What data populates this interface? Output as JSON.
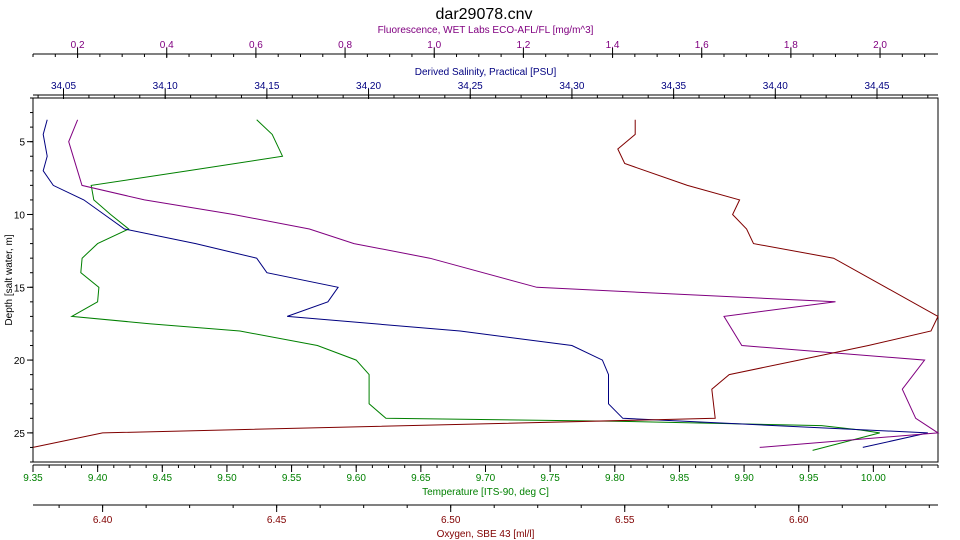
{
  "chart_data": {
    "type": "line",
    "title": "dar29078.cnv",
    "y_axis": {
      "label": "Depth [salt water, m]",
      "range": [
        2,
        27
      ],
      "inverted": true,
      "ticks": [
        5,
        10,
        15,
        20,
        25
      ]
    },
    "axes": [
      {
        "id": "fluorescence",
        "label": "Fluorescence, WET Labs ECO-AFL/FL [mg/m^3]",
        "position": "top",
        "range": [
          0.1,
          2.13
        ],
        "ticks": [
          0.2,
          0.4,
          0.6,
          0.8,
          1.0,
          1.2,
          1.4,
          1.6,
          1.8,
          2.0
        ],
        "tick_labels": [
          "0.2",
          "0.4",
          "0.6",
          "0.8",
          "1.0",
          "1.2",
          "1.4",
          "1.6",
          "1.8",
          "2.0"
        ],
        "minor_step": 0.05,
        "color": "#800080"
      },
      {
        "id": "salinity",
        "label": "Derived Salinity, Practical [PSU]",
        "position": "top",
        "range": [
          34.035,
          34.48
        ],
        "ticks": [
          34.05,
          34.1,
          34.15,
          34.2,
          34.25,
          34.3,
          34.35,
          34.4,
          34.45
        ],
        "tick_labels": [
          "34.05",
          "34.10",
          "34.15",
          "34.20",
          "34.25",
          "34.30",
          "34.35",
          "34.40",
          "34.45"
        ],
        "minor_step": 0.0125,
        "color": "#000080"
      },
      {
        "id": "temperature",
        "label": "Temperature [ITS-90, deg C]",
        "position": "bottom",
        "range": [
          9.35,
          10.05
        ],
        "ticks": [
          9.35,
          9.4,
          9.45,
          9.5,
          9.55,
          9.6,
          9.65,
          9.7,
          9.75,
          9.8,
          9.85,
          9.9,
          9.95,
          10.0
        ],
        "tick_labels": [
          "9.35",
          "9.40",
          "9.45",
          "9.50",
          "9.55",
          "9.60",
          "9.65",
          "9.70",
          "9.75",
          "9.80",
          "9.85",
          "9.90",
          "9.95",
          "10.00"
        ],
        "minor_step": 0.0125,
        "color": "#008000"
      },
      {
        "id": "oxygen",
        "label": "Oxygen, SBE 43 [ml/l]",
        "position": "bottom",
        "range": [
          6.38,
          6.64
        ],
        "ticks": [
          6.4,
          6.45,
          6.5,
          6.55,
          6.6
        ],
        "tick_labels": [
          "6.40",
          "6.45",
          "6.50",
          "6.55",
          "6.60"
        ],
        "minor_step": 0.0125,
        "color": "#800000"
      }
    ],
    "series": [
      {
        "axis": "temperature",
        "color": "#008000",
        "points": [
          [
            9.523,
            3.5
          ],
          [
            9.535,
            4.5
          ],
          [
            9.543,
            6.0
          ],
          [
            9.47,
            7.0
          ],
          [
            9.395,
            8.0
          ],
          [
            9.397,
            9.0
          ],
          [
            9.41,
            10.0
          ],
          [
            9.424,
            11.0
          ],
          [
            9.4,
            12.0
          ],
          [
            9.388,
            13.0
          ],
          [
            9.387,
            14.0
          ],
          [
            9.401,
            15.0
          ],
          [
            9.4,
            16.0
          ],
          [
            9.38,
            17.0
          ],
          [
            9.44,
            17.5
          ],
          [
            9.51,
            18.0
          ],
          [
            9.57,
            19.0
          ],
          [
            9.6,
            20.0
          ],
          [
            9.61,
            21.0
          ],
          [
            9.61,
            23.0
          ],
          [
            9.623,
            24.0
          ],
          [
            9.8,
            24.2
          ],
          [
            9.96,
            24.5
          ],
          [
            9.99,
            24.8
          ],
          [
            10.005,
            25.0
          ],
          [
            9.953,
            26.2
          ]
        ]
      },
      {
        "axis": "salinity",
        "color": "#000080",
        "points": [
          [
            34.042,
            3.5
          ],
          [
            34.04,
            4.5
          ],
          [
            34.042,
            6.0
          ],
          [
            34.04,
            7.0
          ],
          [
            34.045,
            8.0
          ],
          [
            34.06,
            9.0
          ],
          [
            34.07,
            10.0
          ],
          [
            34.08,
            11.0
          ],
          [
            34.115,
            12.0
          ],
          [
            34.145,
            13.0
          ],
          [
            34.15,
            14.0
          ],
          [
            34.185,
            15.0
          ],
          [
            34.18,
            16.0
          ],
          [
            34.16,
            17.0
          ],
          [
            34.245,
            18.0
          ],
          [
            34.3,
            19.0
          ],
          [
            34.315,
            20.0
          ],
          [
            34.318,
            21.0
          ],
          [
            34.318,
            23.0
          ],
          [
            34.325,
            24.0
          ],
          [
            34.475,
            25.0
          ],
          [
            34.443,
            26.0
          ]
        ]
      },
      {
        "axis": "fluorescence",
        "color": "#800080",
        "points": [
          [
            0.2,
            3.5
          ],
          [
            0.18,
            5.0
          ],
          [
            0.19,
            6.0
          ],
          [
            0.21,
            8.0
          ],
          [
            0.35,
            9.0
          ],
          [
            0.55,
            10.0
          ],
          [
            0.72,
            11.0
          ],
          [
            0.82,
            12.0
          ],
          [
            0.99,
            13.0
          ],
          [
            1.23,
            15.0
          ],
          [
            1.9,
            16.0
          ],
          [
            1.65,
            17.0
          ],
          [
            1.69,
            19.0
          ],
          [
            2.1,
            20.0
          ],
          [
            2.05,
            22.0
          ],
          [
            2.08,
            24.0
          ],
          [
            2.13,
            25.0
          ],
          [
            1.73,
            26.0
          ]
        ]
      },
      {
        "axis": "oxygen",
        "color": "#800000",
        "points": [
          [
            6.553,
            3.5
          ],
          [
            6.553,
            4.5
          ],
          [
            6.548,
            5.5
          ],
          [
            6.55,
            6.5
          ],
          [
            6.568,
            8.0
          ],
          [
            6.583,
            9.0
          ],
          [
            6.581,
            10.0
          ],
          [
            6.585,
            11.0
          ],
          [
            6.587,
            12.0
          ],
          [
            6.61,
            13.0
          ],
          [
            6.625,
            15.0
          ],
          [
            6.64,
            17.0
          ],
          [
            6.638,
            18.0
          ],
          [
            6.62,
            19.0
          ],
          [
            6.6,
            20.0
          ],
          [
            6.58,
            21.0
          ],
          [
            6.575,
            22.0
          ],
          [
            6.576,
            24.0
          ],
          [
            6.4,
            25.0
          ],
          [
            6.38,
            26.0
          ]
        ]
      }
    ]
  }
}
